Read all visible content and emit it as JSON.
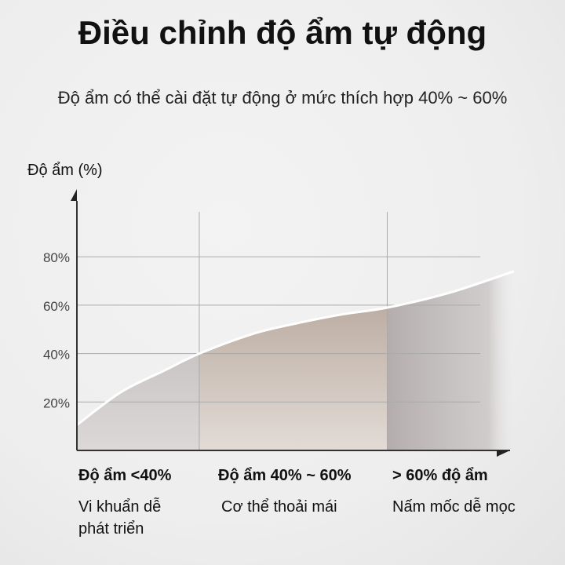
{
  "title": "Điều chỉnh độ ẩm tự động",
  "subtitle": "Độ ẩm có thể cài đặt tự động ở mức thích hợp 40% ~ 60%",
  "chart_data": {
    "type": "area",
    "ylabel": "Độ ẩm (%)",
    "xlabel": "",
    "ylim": [
      0,
      100
    ],
    "xlim": [
      0,
      10
    ],
    "yticks": [
      "20%",
      "40%",
      "60%",
      "80%"
    ],
    "ytick_values": [
      20,
      40,
      60,
      80
    ],
    "grid": true,
    "series": [
      {
        "x": [
          0,
          1,
          2,
          2.8,
          4,
          4.9,
          6,
          7.1,
          8.5,
          10
        ],
        "y": [
          10.5,
          24,
          33,
          40,
          48,
          52,
          56,
          59,
          65,
          74
        ]
      }
    ],
    "dividers_x": [
      2.8,
      7.1
    ],
    "regions": [
      {
        "label": "Độ ẩm <40%",
        "description": "Vi khuẩn dễ phát triển",
        "color": "#b9b3b3"
      },
      {
        "label": "Độ ẩm 40% ~ 60%",
        "description": "Cơ thể thoải mái",
        "color": "#a8968a"
      },
      {
        "label": "> 60% độ ẩm",
        "description": "Nấm mốc dễ mọc",
        "color": "#b8b2b2"
      }
    ]
  }
}
